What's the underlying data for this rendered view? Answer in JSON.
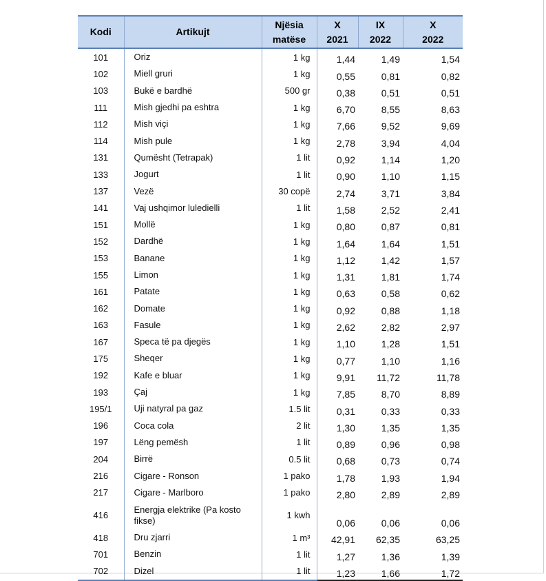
{
  "table": {
    "header": [
      [
        "Kodi"
      ],
      [
        "Artikujt"
      ],
      [
        "Njësia",
        "matëse"
      ],
      [
        "X",
        "2021"
      ],
      [
        "IX",
        "2022"
      ],
      [
        "X",
        "2022"
      ]
    ],
    "rows": [
      [
        "101",
        "Oriz",
        "1 kg",
        "1,44",
        "1,49",
        "1,54"
      ],
      [
        "102",
        "Miell gruri",
        "1 kg",
        "0,55",
        "0,81",
        "0,82"
      ],
      [
        "103",
        "Bukë e bardhë",
        "500 gr",
        "0,38",
        "0,51",
        "0,51"
      ],
      [
        "111",
        "Mish gjedhi pa eshtra",
        "1 kg",
        "6,70",
        "8,55",
        "8,63"
      ],
      [
        "112",
        "Mish viçi",
        "1 kg",
        "7,66",
        "9,52",
        "9,69"
      ],
      [
        "114",
        "Mish pule",
        "1 kg",
        "2,78",
        "3,94",
        "4,04"
      ],
      [
        "131",
        "Qumësht  (Tetrapak)",
        "1 lit",
        "0,92",
        "1,14",
        "1,20"
      ],
      [
        "133",
        "Jogurt",
        "1 lit",
        "0,90",
        "1,10",
        "1,15"
      ],
      [
        "137",
        "Vezë",
        "30 copë",
        "2,74",
        "3,71",
        "3,84"
      ],
      [
        "141",
        "Vaj ushqimor luledielli",
        "1 lit",
        "1,58",
        "2,52",
        "2,41"
      ],
      [
        "151",
        "Mollë",
        "1 kg",
        "0,80",
        "0,87",
        "0,81"
      ],
      [
        "152",
        "Dardhë",
        "1 kg",
        "1,64",
        "1,64",
        "1,51"
      ],
      [
        "153",
        "Banane",
        "1 kg",
        "1,12",
        "1,42",
        "1,57"
      ],
      [
        "155",
        "Limon",
        "1 kg",
        "1,31",
        "1,81",
        "1,74"
      ],
      [
        "161",
        "Patate",
        "1 kg",
        "0,63",
        "0,58",
        "0,62"
      ],
      [
        "162",
        "Domate",
        "1 kg",
        "0,92",
        "0,88",
        "1,18"
      ],
      [
        "163",
        "Fasule",
        "1 kg",
        "2,62",
        "2,82",
        "2,97"
      ],
      [
        "167",
        "Speca  të pa djegës",
        "1 kg",
        "1,10",
        "1,28",
        "1,51"
      ],
      [
        "175",
        "Sheqer",
        "1 kg",
        "0,77",
        "1,10",
        "1,16"
      ],
      [
        "192",
        "Kafe e bluar",
        "1 kg",
        "9,91",
        "11,72",
        "11,78"
      ],
      [
        "193",
        "Çaj",
        "1 kg",
        "7,85",
        "8,70",
        "8,89"
      ],
      [
        "195/1",
        "Uji natyral pa gaz",
        "1.5 lit",
        "0,31",
        "0,33",
        "0,33"
      ],
      [
        "196",
        "Coca cola",
        "2 lit",
        "1,30",
        "1,35",
        "1,35"
      ],
      [
        "197",
        "Lëng pemësh",
        "1 lit",
        "0,89",
        "0,96",
        "0,98"
      ],
      [
        "204",
        "Birrë",
        "0.5 lit",
        "0,68",
        "0,73",
        "0,74"
      ],
      [
        "216",
        "Cigare - Ronson",
        "1 pako",
        "1,78",
        "1,93",
        "1,94"
      ],
      [
        "217",
        "Cigare - Marlboro",
        "1 pako",
        "2,80",
        "2,89",
        "2,89"
      ],
      [
        "416",
        "Energja elektrike (Pa kosto fikse)",
        "1 kwh",
        "0,06",
        "0,06",
        "0,06"
      ],
      [
        "418",
        "Dru zjarri",
        "1 m³",
        "42,91",
        "62,35",
        "63,25"
      ],
      [
        "701",
        "Benzin",
        "1 lit",
        "1,27",
        "1,36",
        "1,39"
      ],
      [
        "702",
        "Dizel",
        "1 lit",
        "1,23",
        "1,66",
        "1,72"
      ]
    ]
  }
}
